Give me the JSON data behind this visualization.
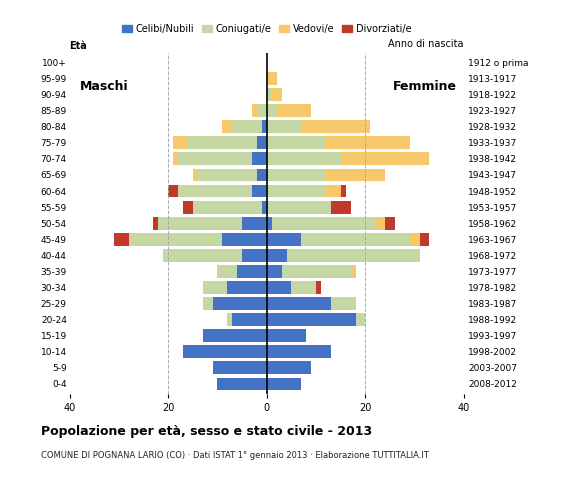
{
  "age_groups": [
    "0-4",
    "5-9",
    "10-14",
    "15-19",
    "20-24",
    "25-29",
    "30-34",
    "35-39",
    "40-44",
    "45-49",
    "50-54",
    "55-59",
    "60-64",
    "65-69",
    "70-74",
    "75-79",
    "80-84",
    "85-89",
    "90-94",
    "95-99",
    "100+"
  ],
  "birth_years": [
    "2008-2012",
    "2003-2007",
    "1998-2002",
    "1993-1997",
    "1988-1992",
    "1983-1987",
    "1978-1982",
    "1973-1977",
    "1968-1972",
    "1963-1967",
    "1958-1962",
    "1953-1957",
    "1948-1952",
    "1943-1947",
    "1938-1942",
    "1933-1937",
    "1928-1932",
    "1923-1927",
    "1918-1922",
    "1913-1917",
    "1912 o prima"
  ],
  "male": {
    "celibi": [
      10,
      11,
      17,
      13,
      7,
      11,
      8,
      6,
      5,
      9,
      5,
      1,
      3,
      2,
      3,
      2,
      1,
      0,
      0,
      0,
      0
    ],
    "coniugati": [
      0,
      0,
      0,
      0,
      1,
      2,
      5,
      4,
      16,
      19,
      17,
      14,
      15,
      12,
      15,
      14,
      6,
      2,
      0,
      0,
      0
    ],
    "vedovi": [
      0,
      0,
      0,
      0,
      0,
      0,
      0,
      0,
      0,
      0,
      0,
      0,
      0,
      1,
      1,
      3,
      2,
      1,
      0,
      0,
      0
    ],
    "divorziati": [
      0,
      0,
      0,
      0,
      0,
      0,
      0,
      0,
      0,
      3,
      1,
      2,
      2,
      0,
      0,
      0,
      0,
      0,
      0,
      0,
      0
    ]
  },
  "female": {
    "nubili": [
      7,
      9,
      13,
      8,
      18,
      13,
      5,
      3,
      4,
      7,
      1,
      0,
      0,
      0,
      0,
      0,
      0,
      0,
      0,
      0,
      0
    ],
    "coniugate": [
      0,
      0,
      0,
      0,
      2,
      5,
      5,
      14,
      27,
      22,
      21,
      13,
      12,
      12,
      15,
      12,
      7,
      2,
      1,
      0,
      0
    ],
    "vedove": [
      0,
      0,
      0,
      0,
      0,
      0,
      0,
      1,
      0,
      2,
      2,
      0,
      3,
      12,
      18,
      17,
      14,
      7,
      2,
      2,
      0
    ],
    "divorziate": [
      0,
      0,
      0,
      0,
      0,
      0,
      1,
      0,
      0,
      2,
      2,
      4,
      1,
      0,
      0,
      0,
      0,
      0,
      0,
      0,
      0
    ]
  },
  "colors": {
    "celibi": "#4472c4",
    "coniugati": "#c5d8a4",
    "vedovi": "#f5c96b",
    "divorziati": "#c0392b"
  },
  "xlim": 40,
  "title": "Popolazione per età, sesso e stato civile - 2013",
  "subtitle": "COMUNE DI POGNANA LARIO (CO) · Dati ISTAT 1° gennaio 2013 · Elaborazione TUTTITALIA.IT",
  "ylabel_left": "Età",
  "ylabel_right": "Anno di nascita",
  "label_maschi": "Maschi",
  "label_femmine": "Femmine",
  "legend_labels": [
    "Celibi/Nubili",
    "Coniugati/e",
    "Vedovi/e",
    "Divorziati/e"
  ],
  "background_color": "#ffffff",
  "bar_height": 0.8
}
